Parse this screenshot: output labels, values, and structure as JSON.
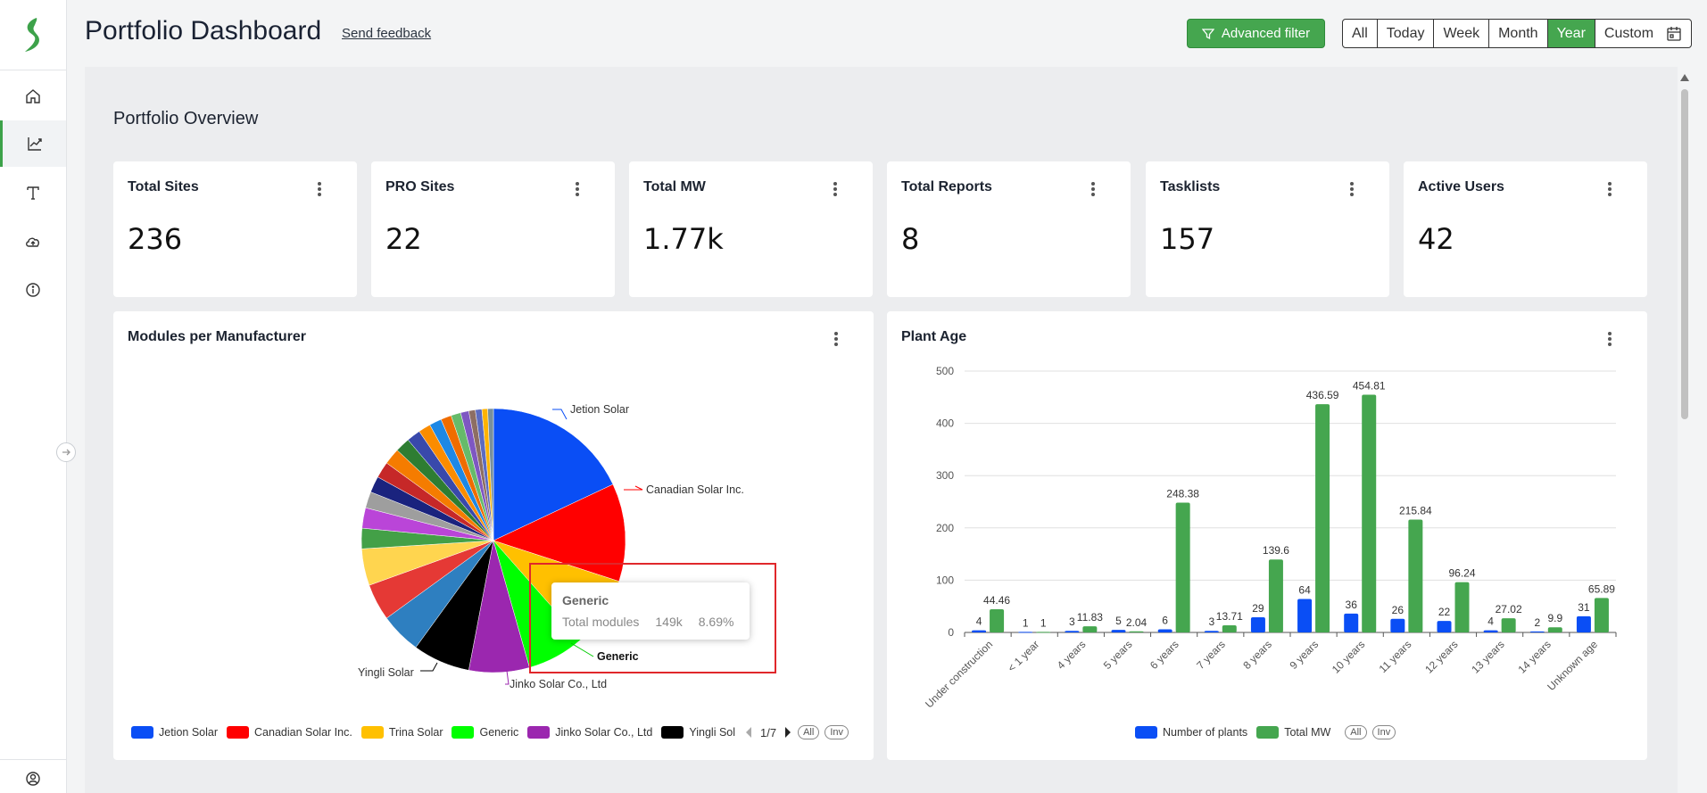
{
  "header": {
    "title": "Portfolio Dashboard",
    "feedback": "Send feedback",
    "advanced_filter": "Advanced filter",
    "ranges": [
      "All",
      "Today",
      "Week",
      "Month",
      "Year",
      "Custom"
    ],
    "active_range": "Year"
  },
  "sidebar": {
    "items": [
      {
        "icon": "home-icon"
      },
      {
        "icon": "chart-icon",
        "active": true
      },
      {
        "icon": "text-icon"
      },
      {
        "icon": "upload-cloud-icon"
      },
      {
        "icon": "info-icon"
      }
    ],
    "bottom_icon": "user-icon"
  },
  "overview": {
    "title": "Portfolio Overview",
    "kpis": [
      {
        "label": "Total Sites",
        "value": "236"
      },
      {
        "label": "PRO Sites",
        "value": "22"
      },
      {
        "label": "Total MW",
        "value": "1.77k"
      },
      {
        "label": "Total Reports",
        "value": "8"
      },
      {
        "label": "Tasklists",
        "value": "157"
      },
      {
        "label": "Active Users",
        "value": "42"
      }
    ]
  },
  "modules_card": {
    "title": "Modules per Manufacturer",
    "pie_labels": {
      "jetion": "Jetion Solar",
      "canadian": "Canadian Solar Inc.",
      "generic": "Generic",
      "jinko": "Jinko Solar Co., Ltd",
      "yingli": "Yingli Solar"
    },
    "legend": [
      {
        "label": "Jetion Solar",
        "color": "#0a4ef5"
      },
      {
        "label": "Canadian Solar Inc.",
        "color": "#ff0000"
      },
      {
        "label": "Trina Solar",
        "color": "#ffc000"
      },
      {
        "label": "Generic",
        "color": "#00ff00"
      },
      {
        "label": "Jinko Solar Co., Ltd",
        "color": "#9b27af"
      },
      {
        "label": "Yingli Sol",
        "color": "#000000"
      }
    ],
    "pager": "1/7",
    "all_label": "All",
    "inv_label": "Inv",
    "tooltip": {
      "name": "Generic",
      "metric": "Total modules",
      "value": "149k",
      "percent": "8.69%"
    }
  },
  "chart_data": {
    "type": "bar",
    "title": "Plant Age",
    "categories": [
      "Under construction",
      "< 1 year",
      "4 years",
      "5 years",
      "6 years",
      "7 years",
      "8 years",
      "9 years",
      "10 years",
      "11 years",
      "12 years",
      "13 years",
      "14 years",
      "Unknown age"
    ],
    "series": [
      {
        "name": "Number of plants",
        "color": "#0a4ef5",
        "values": [
          4,
          1,
          3,
          5,
          6,
          3,
          29,
          64,
          36,
          26,
          22,
          4,
          2,
          31
        ],
        "labels": [
          "4",
          "1",
          "3",
          "5",
          "6",
          "3",
          "29",
          "64",
          "36",
          "26",
          "22",
          "4",
          "2",
          "31"
        ]
      },
      {
        "name": "Total MW",
        "color": "#45a64f",
        "values": [
          44.46,
          1,
          11.83,
          2.04,
          248.38,
          13.71,
          139.6,
          436.59,
          454.81,
          215.84,
          96.24,
          27.02,
          9.9,
          65.89
        ],
        "labels": [
          "44.46",
          "1",
          "11.83",
          "2.04",
          "248.38",
          "13.71",
          "139.6",
          "436.59",
          "454.81",
          "215.84",
          "96.24",
          "27.02",
          "9.9",
          "65.89"
        ]
      }
    ],
    "ylim": [
      0,
      500
    ],
    "yticks": [
      "0",
      "100",
      "200",
      "300",
      "400",
      "500"
    ],
    "grid": true,
    "legend_position": "bottom",
    "all_label": "All",
    "inv_label": "Inv"
  }
}
